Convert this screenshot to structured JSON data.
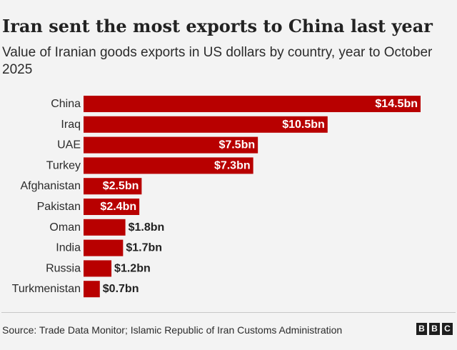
{
  "header": {
    "title": "Iran sent the most exports to China last year",
    "subtitle": "Value of Iranian goods exports in US dollars by country, year to October 2025"
  },
  "chart_data": {
    "type": "bar",
    "orientation": "horizontal",
    "title": "Iran sent the most exports to China last year",
    "subtitle": "Value of Iranian goods exports in US dollars by country, year to October 2025",
    "categories": [
      "China",
      "Iraq",
      "UAE",
      "Turkey",
      "Afghanistan",
      "Pakistan",
      "Oman",
      "India",
      "Russia",
      "Turkmenistan"
    ],
    "values": [
      14.5,
      10.5,
      7.5,
      7.3,
      2.5,
      2.4,
      1.8,
      1.7,
      1.2,
      0.7
    ],
    "value_labels": [
      "$14.5bn",
      "$10.5bn",
      "$7.5bn",
      "$7.3bn",
      "$2.5bn",
      "$2.4bn",
      "$1.8bn",
      "$1.7bn",
      "$1.2bn",
      "$0.7bn"
    ],
    "xlim": [
      0,
      14.5
    ],
    "grid": false,
    "legend": "none",
    "bar_color": "#b80000"
  },
  "footer": {
    "source": "Source: Trade Data Monitor; Islamic Republic of Iran Customs Administration",
    "logo_letters": [
      "B",
      "B",
      "C"
    ]
  }
}
